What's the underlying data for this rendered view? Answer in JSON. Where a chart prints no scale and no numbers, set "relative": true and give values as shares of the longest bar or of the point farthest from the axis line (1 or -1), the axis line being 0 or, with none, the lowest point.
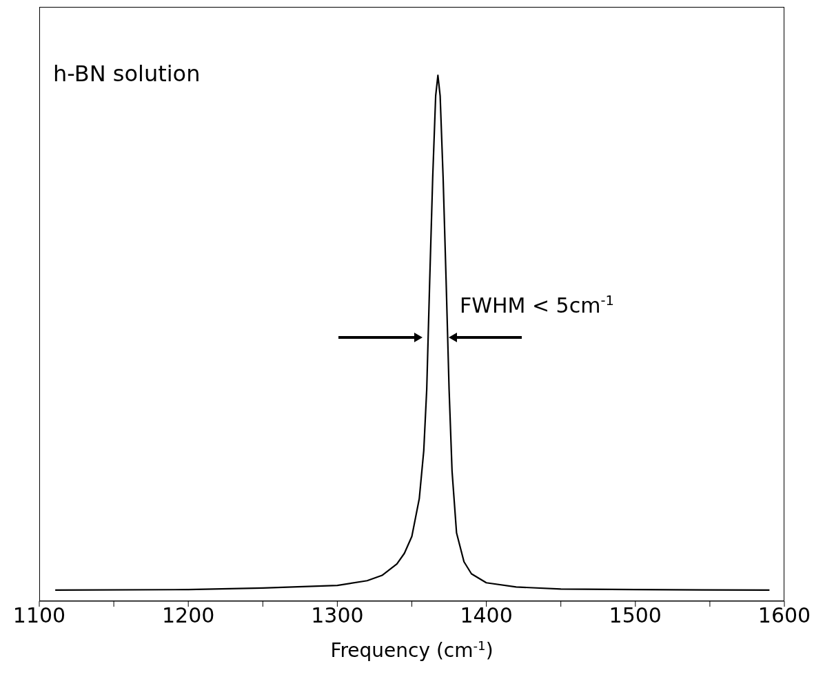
{
  "chart_data": {
    "type": "line",
    "title": "h-BN solution",
    "xlabel": "Frequency (cm$^{-1}$)",
    "relative": true,
    "xlim": [
      1100,
      1600
    ],
    "xticks": [
      1100,
      {
        "value": 1150,
        "label": null
      },
      1200,
      {
        "value": 1250,
        "label": null
      },
      1300,
      {
        "value": 1350,
        "label": null
      },
      1400,
      {
        "value": 1450,
        "label": null
      },
      1500,
      {
        "value": 1550,
        "label": null
      },
      1600
    ],
    "annotations": [
      "FWHM < 5cm$^{-1}$"
    ],
    "marker": "none",
    "line_style": "solid",
    "series": [
      {
        "color": "#000000",
        "x": [
          1110.7,
          1200,
          1250,
          1300,
          1320,
          1330,
          1340,
          1345,
          1350,
          1355,
          1358,
          1360,
          1362,
          1364,
          1366,
          1367.5,
          1369,
          1371,
          1373,
          1375,
          1377,
          1380,
          1385,
          1390,
          1400,
          1420,
          1450,
          1500,
          1590
        ],
        "values": [
          0.021,
          0.022,
          0.025,
          0.03,
          0.039,
          0.049,
          0.071,
          0.091,
          0.123,
          0.195,
          0.286,
          0.403,
          0.61,
          0.805,
          0.961,
          1,
          0.961,
          0.805,
          0.61,
          0.403,
          0.247,
          0.13,
          0.075,
          0.052,
          0.035,
          0.027,
          0.023,
          0.022,
          0.021
        ]
      }
    ]
  }
}
